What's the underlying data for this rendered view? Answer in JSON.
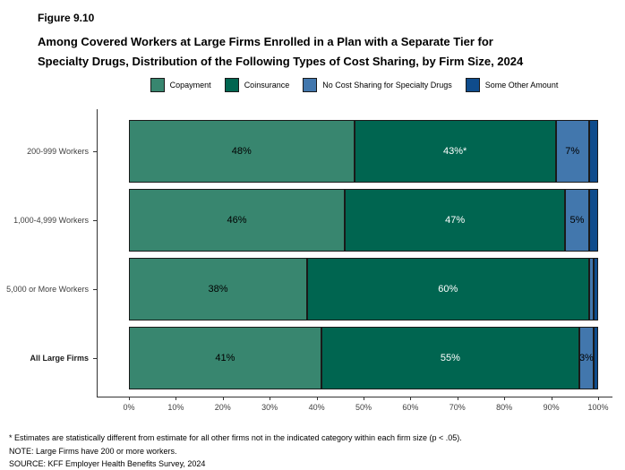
{
  "figure": {
    "label": "Figure 9.10",
    "title_line1": "Among Covered Workers at Large Firms Enrolled in a Plan with a Separate Tier for",
    "title_line2": "Specialty Drugs, Distribution of the Following Types of Cost Sharing, by Firm Size, 2024"
  },
  "chart_data": {
    "type": "bar",
    "orientation": "horizontal",
    "stacked": true,
    "title": "Among Covered Workers at Large Firms Enrolled in a Plan with a Separate Tier for Specialty Drugs, Distribution of the Following Types of Cost Sharing, by Firm Size, 2024",
    "categories": [
      "200-999 Workers",
      "1,000-4,999 Workers",
      "5,000 or More Workers",
      "All Large Firms"
    ],
    "bold_category": "All Large Firms",
    "series": [
      {
        "name": "Copayment",
        "color": "#38866F",
        "label_color": "#000000",
        "values": [
          48,
          46,
          38,
          41
        ],
        "labels": [
          "48%",
          "46%",
          "38%",
          "41%"
        ]
      },
      {
        "name": "Coinsurance",
        "color": "#006550",
        "label_color": "#FFFFFF",
        "values": [
          43,
          47,
          60,
          55
        ],
        "labels": [
          "43%*",
          "47%",
          "60%",
          "55%"
        ]
      },
      {
        "name": "No Cost Sharing for Specialty Drugs",
        "color": "#4277AD",
        "label_color": "#000000",
        "values": [
          7,
          5,
          1,
          3
        ],
        "labels": [
          "7%",
          "5%",
          "",
          "3%"
        ]
      },
      {
        "name": "Some Other Amount",
        "color": "#0F4C8C",
        "label_color": "#FFFFFF",
        "values": [
          2,
          2,
          1,
          1
        ],
        "labels": [
          "",
          "",
          "",
          ""
        ]
      }
    ],
    "xlim": [
      0,
      100
    ],
    "x_tick_labels": [
      "0%",
      "10%",
      "20%",
      "30%",
      "40%",
      "50%",
      "60%",
      "70%",
      "80%",
      "90%",
      "100%"
    ],
    "x_tick_values": [
      0,
      10,
      20,
      30,
      40,
      50,
      60,
      70,
      80,
      90,
      100
    ],
    "legend_position": "top",
    "grid": false,
    "segment_border_color": "#1A1A1A",
    "axis_color": "#333333"
  },
  "footnotes": [
    "* Estimates are statistically different from estimate for all other firms not in the indicated category within each firm size (p < .05).",
    "NOTE: Large Firms have 200 or more workers.",
    "SOURCE: KFF Employer Health Benefits Survey, 2024"
  ]
}
